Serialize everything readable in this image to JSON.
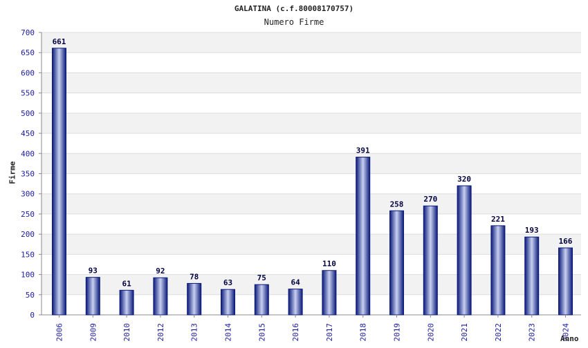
{
  "chart_data": {
    "type": "bar",
    "title": "GALATINA (c.f.80008170757)",
    "subtitle": "Numero Firme",
    "xlabel": "Anno",
    "ylabel": "Firme",
    "categories": [
      "2006",
      "2009",
      "2010",
      "2012",
      "2013",
      "2014",
      "2015",
      "2016",
      "2017",
      "2018",
      "2019",
      "2020",
      "2021",
      "2022",
      "2023",
      "2024"
    ],
    "values": [
      661,
      93,
      61,
      92,
      78,
      63,
      75,
      64,
      110,
      391,
      258,
      270,
      320,
      221,
      193,
      166
    ],
    "ylim": [
      0,
      700
    ],
    "yticks": [
      0,
      50,
      100,
      150,
      200,
      250,
      300,
      350,
      400,
      450,
      500,
      550,
      600,
      650,
      700
    ],
    "grid": true,
    "colors": {
      "bar_dark": "#0a1a7a",
      "bar_light": "#c8d0f0",
      "tick_label": "#1a1aa0",
      "value_label": "#000040",
      "band": "#f2f2f2"
    }
  }
}
